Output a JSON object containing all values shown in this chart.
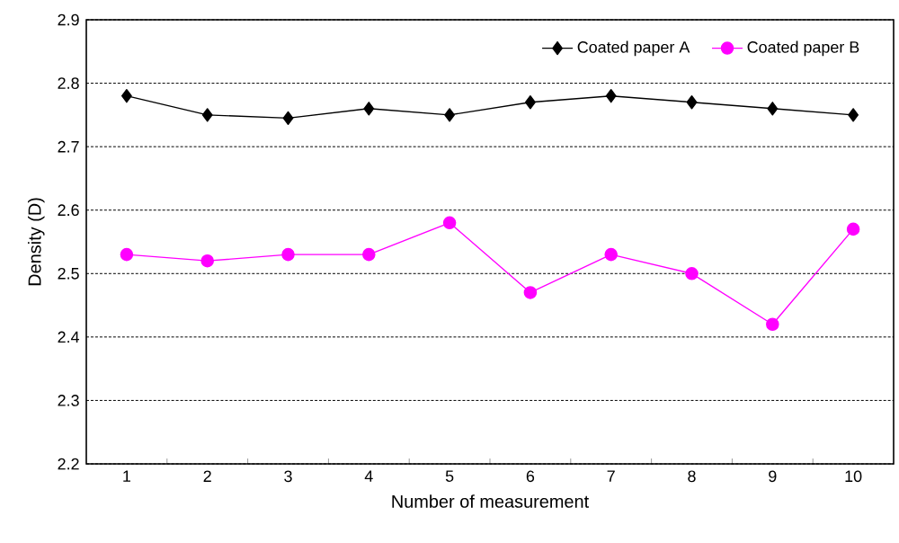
{
  "chart_data": {
    "type": "line",
    "xlabel": "Number of measurement",
    "ylabel": "Density (D)",
    "categories": [
      "1",
      "2",
      "3",
      "4",
      "5",
      "6",
      "7",
      "8",
      "9",
      "10"
    ],
    "series": [
      {
        "name": "Coated paper A",
        "color": "#000000",
        "marker": "diamond",
        "values": [
          2.78,
          2.75,
          2.745,
          2.76,
          2.75,
          2.77,
          2.78,
          2.77,
          2.76,
          2.75
        ]
      },
      {
        "name": "Coated paper B",
        "color": "#ff00ff",
        "marker": "circle",
        "values": [
          2.53,
          2.52,
          2.53,
          2.53,
          2.58,
          2.47,
          2.53,
          2.5,
          2.42,
          2.57
        ]
      }
    ],
    "ylim": [
      2.2,
      2.9
    ],
    "yticks": [
      2.2,
      2.3,
      2.4,
      2.5,
      2.6,
      2.7,
      2.8,
      2.9
    ],
    "grid": "y",
    "legend": "top right"
  }
}
